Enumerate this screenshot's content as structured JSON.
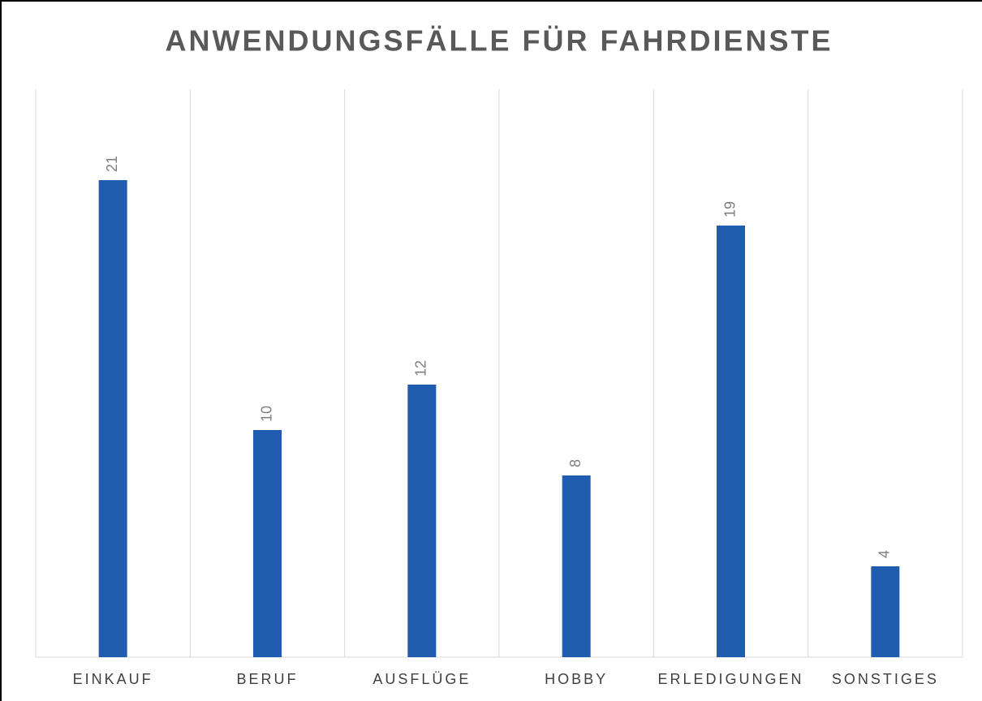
{
  "chart_data": {
    "type": "bar",
    "title": "ANWENDUNGSFÄLLE FÜR FAHRDIENSTE",
    "categories": [
      "EINKAUF",
      "BERUF",
      "AUSFLÜGE",
      "HOBBY",
      "ERLEDIGUNGEN",
      "SONSTIGES"
    ],
    "values": [
      21,
      10,
      12,
      8,
      19,
      4
    ],
    "color": "#215daf",
    "ylim": [
      0,
      25
    ]
  }
}
